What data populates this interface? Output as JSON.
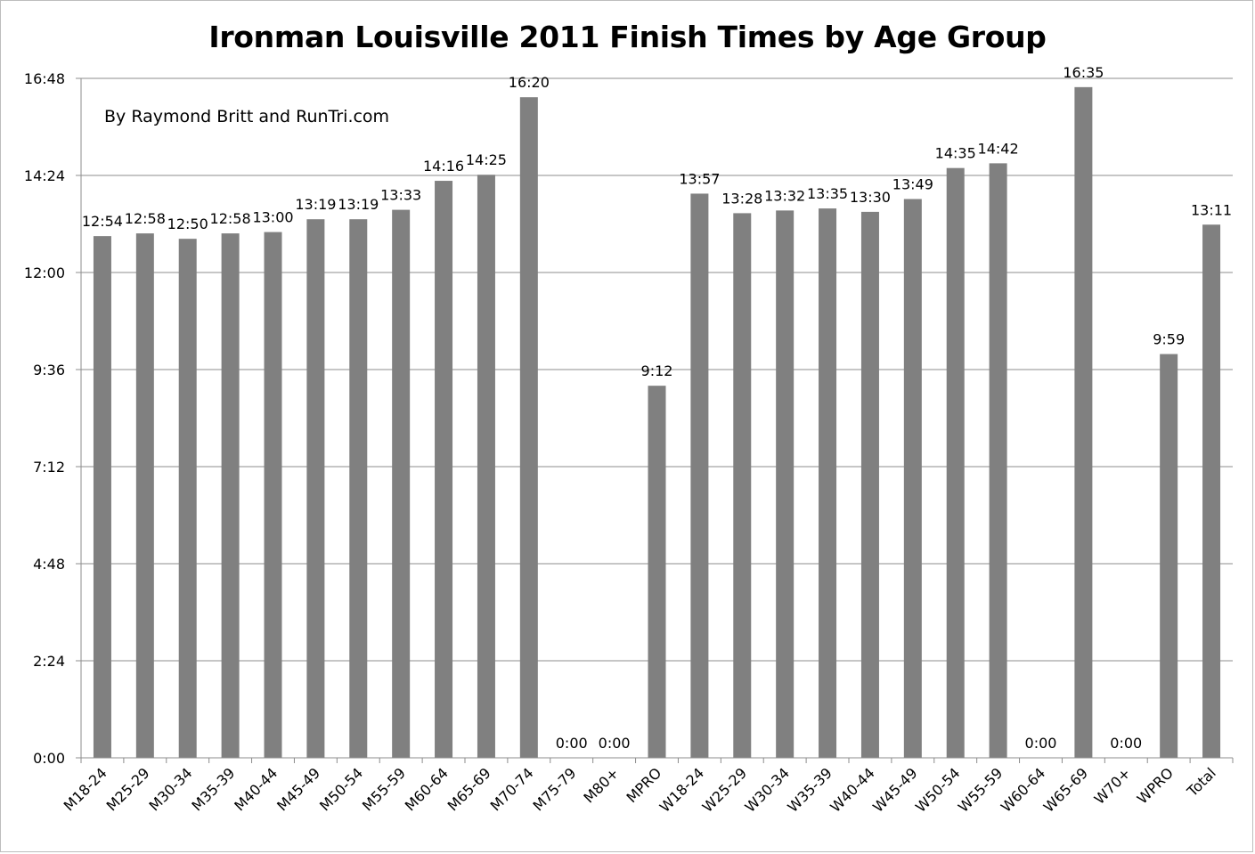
{
  "chart_data": {
    "type": "bar",
    "title": "Ironman Louisville 2011 Finish Times by Age Group",
    "annotation": "By Raymond Britt and RunTri.com",
    "xlabel": "",
    "ylabel": "",
    "y_unit": "h:mm",
    "ylim_minutes": [
      0,
      1008
    ],
    "y_ticks": [
      "0:00",
      "2:24",
      "4:48",
      "7:12",
      "9:36",
      "12:00",
      "14:24",
      "16:48"
    ],
    "categories": [
      "M18-24",
      "M25-29",
      "M30-34",
      "M35-39",
      "M40-44",
      "M45-49",
      "M50-54",
      "M55-59",
      "M60-64",
      "M65-69",
      "M70-74",
      "M75-79",
      "M80+",
      "MPRO",
      "W18-24",
      "W25-29",
      "W30-34",
      "W35-39",
      "W40-44",
      "W45-49",
      "W50-54",
      "W55-59",
      "W60-64",
      "W65-69",
      "W70+",
      "WPRO",
      "Total"
    ],
    "labels": [
      "12:54",
      "12:58",
      "12:50",
      "12:58",
      "13:00",
      "13:19",
      "13:19",
      "13:33",
      "14:16",
      "14:25",
      "16:20",
      "0:00",
      "0:00",
      "9:12",
      "13:57",
      "13:28",
      "13:32",
      "13:35",
      "13:30",
      "13:49",
      "14:35",
      "14:42",
      "0:00",
      "16:35",
      "0:00",
      "9:59",
      "13:11"
    ],
    "grid": true,
    "legend": "none",
    "bar_color": "#808080"
  }
}
